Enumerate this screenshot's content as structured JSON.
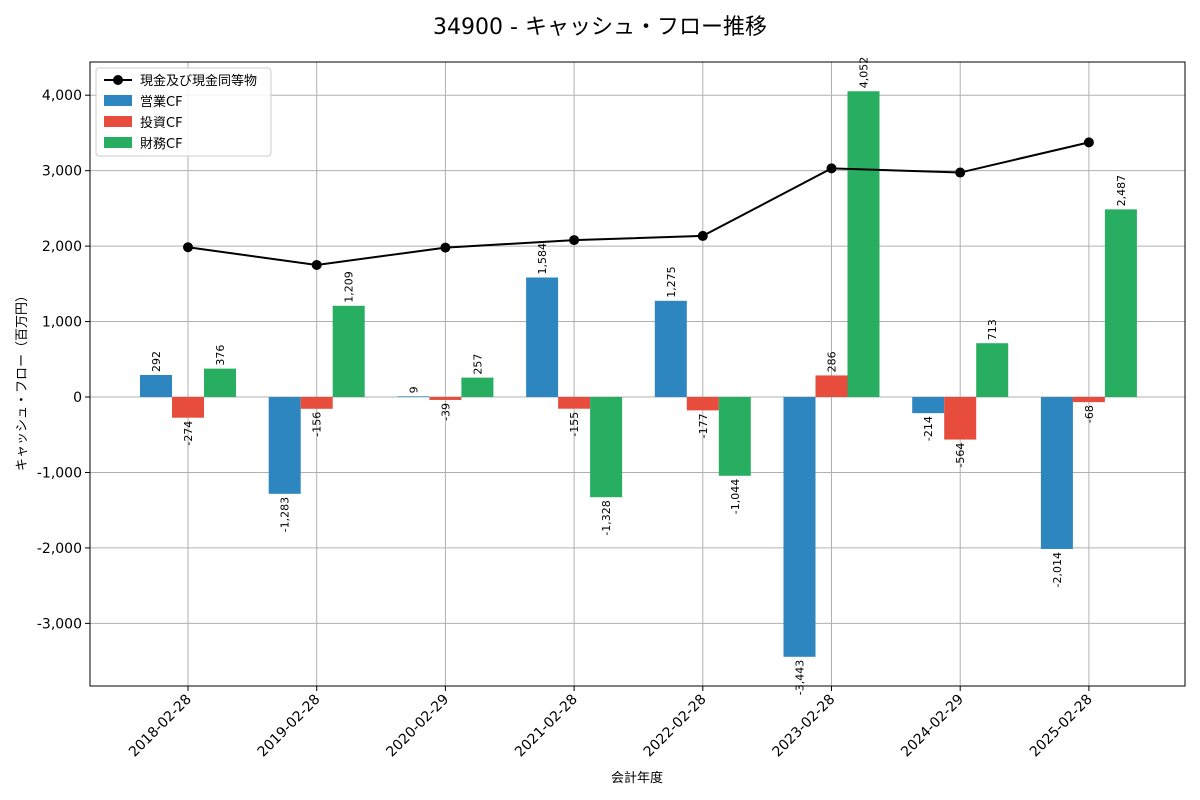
{
  "chart_data": {
    "type": "bar",
    "title": "34900 - キャッシュ・フロー推移",
    "xlabel": "会計年度",
    "ylabel": "キャッシュ・フロー（百万円）",
    "categories": [
      "2018-02-28",
      "2019-02-28",
      "2020-02-29",
      "2021-02-28",
      "2022-02-28",
      "2023-02-28",
      "2024-02-29",
      "2025-02-28"
    ],
    "series": [
      {
        "name": "営業CF",
        "color": "#2e86c1",
        "values": [
          292,
          -1283,
          9,
          1584,
          1275,
          -3443,
          -214,
          -2014
        ],
        "labels": [
          "292",
          "-1,283",
          "9",
          "1,584",
          "1,275",
          "-3,443",
          "-214",
          "-2,014"
        ]
      },
      {
        "name": "投資CF",
        "color": "#e74c3c",
        "values": [
          -274,
          -156,
          -39,
          -155,
          -177,
          286,
          -564,
          -68
        ],
        "labels": [
          "-274",
          "-156",
          "-39",
          "-155",
          "-177",
          "286",
          "-564",
          "-68"
        ]
      },
      {
        "name": "財務CF",
        "color": "#27ae60",
        "values": [
          376,
          1209,
          257,
          -1328,
          -1044,
          4052,
          713,
          2487
        ],
        "labels": [
          "376",
          "1,209",
          "257",
          "-1,328",
          "-1,044",
          "4,052",
          "713",
          "2,487"
        ]
      }
    ],
    "line_series": {
      "name": "現金及び現金同等物",
      "color": "#000000",
      "values": [
        1985,
        1750,
        1980,
        2080,
        2135,
        3030,
        2975,
        3375
      ]
    },
    "yticks": [
      -3000,
      -2000,
      -1000,
      0,
      1000,
      2000,
      3000,
      4000
    ],
    "ytick_labels": [
      "-3,000",
      "-2,000",
      "-1,000",
      "0",
      "1,000",
      "2,000",
      "3,000",
      "4,000"
    ],
    "ylim": [
      -3830,
      4440
    ],
    "grid": true,
    "legend_position": "top-left"
  }
}
